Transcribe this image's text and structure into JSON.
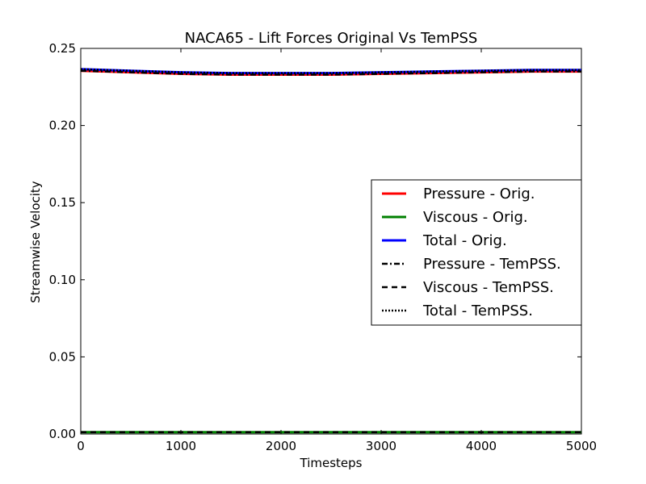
{
  "chart_data": {
    "type": "line",
    "title": "NACA65 - Lift Forces Original Vs TemPSS",
    "xlabel": "Timesteps",
    "ylabel": "Streamwise Velocity",
    "xlim": [
      0,
      5000
    ],
    "ylim": [
      0.0,
      0.25
    ],
    "xticks": [
      0,
      1000,
      2000,
      3000,
      4000,
      5000
    ],
    "xtick_labels": [
      "0",
      "1000",
      "2000",
      "3000",
      "4000",
      "5000"
    ],
    "yticks": [
      0.0,
      0.05,
      0.1,
      0.15,
      0.2,
      0.25
    ],
    "ytick_labels": [
      "0.00",
      "0.05",
      "0.10",
      "0.15",
      "0.20",
      "0.25"
    ],
    "grid": false,
    "legend_position": "center-right",
    "x": [
      0,
      500,
      1000,
      1500,
      2000,
      2500,
      3000,
      3500,
      4000,
      4500,
      5000
    ],
    "series": [
      {
        "name": "Pressure - Orig.",
        "color": "#ff0000",
        "style": "solid",
        "values": [
          0.2355,
          0.2345,
          0.2335,
          0.233,
          0.233,
          0.233,
          0.2335,
          0.234,
          0.2345,
          0.235,
          0.235
        ]
      },
      {
        "name": "Viscous - Orig.",
        "color": "#008000",
        "style": "solid",
        "values": [
          0.0012,
          0.0012,
          0.0012,
          0.0012,
          0.0012,
          0.0012,
          0.0012,
          0.0012,
          0.0012,
          0.0012,
          0.0012
        ]
      },
      {
        "name": "Total - Orig.",
        "color": "#0000ff",
        "style": "solid",
        "values": [
          0.2365,
          0.2355,
          0.2345,
          0.234,
          0.234,
          0.234,
          0.2345,
          0.235,
          0.2355,
          0.236,
          0.236
        ]
      },
      {
        "name": "Pressure - TemPSS.",
        "color": "#000000",
        "style": "dashdot",
        "values": [
          0.2355,
          0.2345,
          0.2335,
          0.233,
          0.233,
          0.233,
          0.2335,
          0.234,
          0.2345,
          0.235,
          0.235
        ]
      },
      {
        "name": "Viscous - TemPSS.",
        "color": "#000000",
        "style": "dashed",
        "values": [
          0.0012,
          0.0012,
          0.0012,
          0.0012,
          0.0012,
          0.0012,
          0.0012,
          0.0012,
          0.0012,
          0.0012,
          0.0012
        ]
      },
      {
        "name": "Total - TemPSS.",
        "color": "#000000",
        "style": "dotted",
        "values": [
          0.2365,
          0.2355,
          0.2345,
          0.234,
          0.234,
          0.234,
          0.2345,
          0.235,
          0.2355,
          0.236,
          0.236
        ]
      }
    ]
  }
}
